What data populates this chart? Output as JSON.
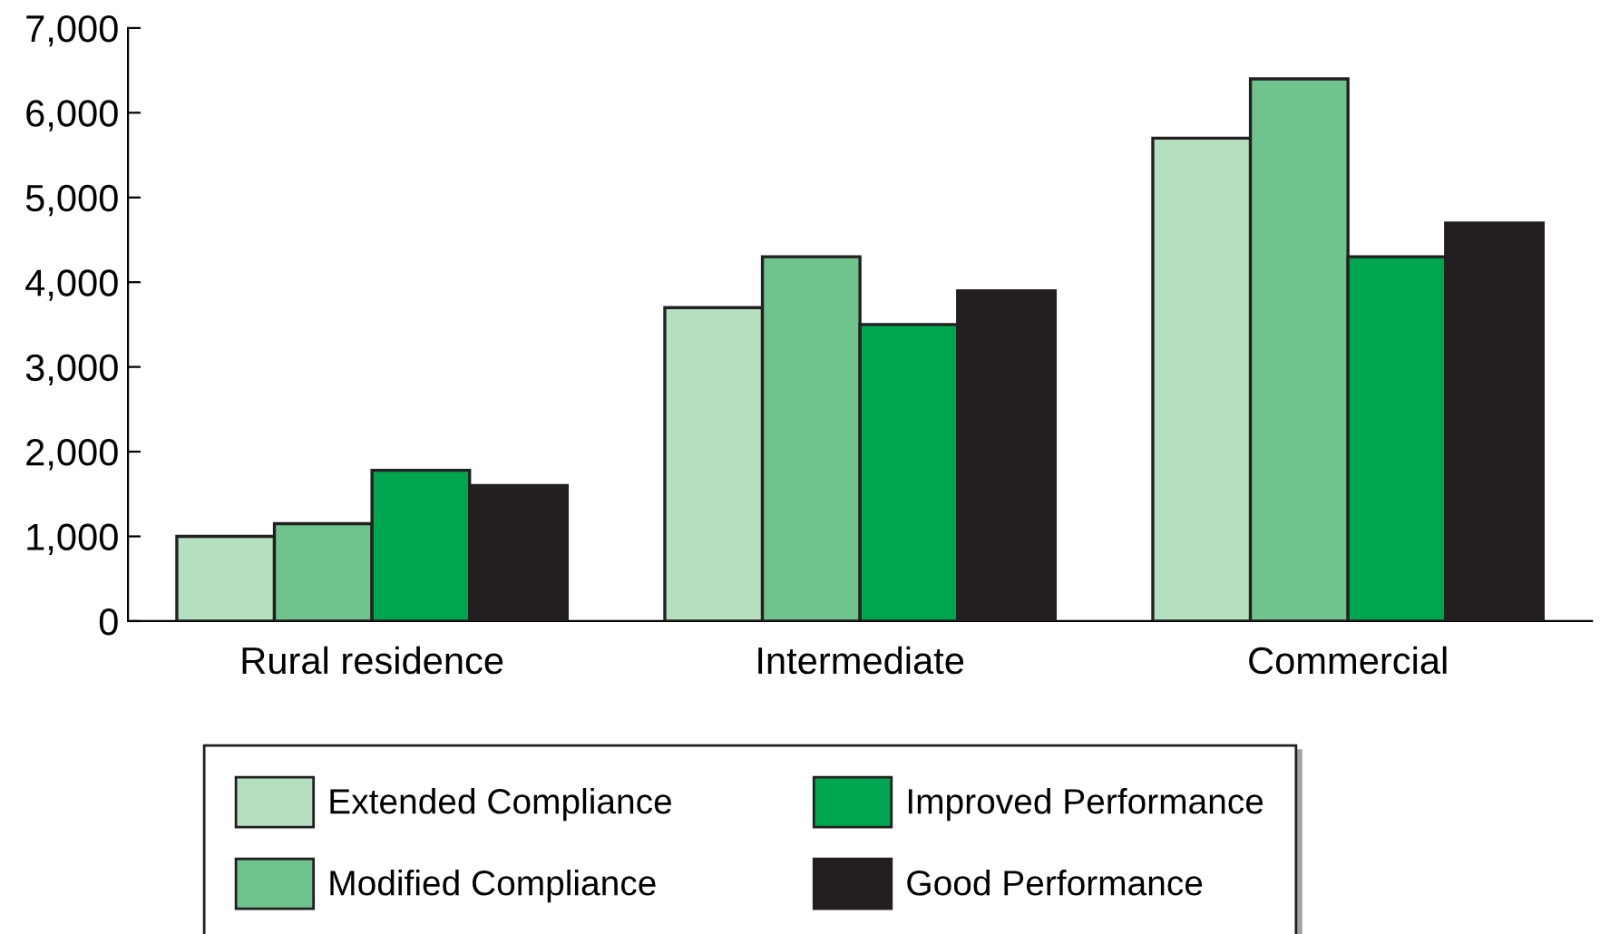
{
  "chart_data": {
    "type": "bar",
    "categories": [
      "Rural residence",
      "Intermediate",
      "Commercial"
    ],
    "series": [
      {
        "name": "Extended Compliance",
        "color": "#b5e0c0",
        "values": [
          1000,
          3700,
          5700
        ]
      },
      {
        "name": "Modified Compliance",
        "color": "#6fc48e",
        "values": [
          1150,
          4300,
          6400
        ]
      },
      {
        "name": "Improved Performance",
        "color": "#00a64f",
        "values": [
          1780,
          3500,
          4300
        ]
      },
      {
        "name": "Good Performance",
        "color": "#231f20",
        "values": [
          1600,
          3900,
          4700
        ]
      }
    ],
    "ylim": [
      0,
      7000
    ],
    "yticks": [
      0,
      {
        "value": 1000,
        "label": "1,000"
      },
      {
        "value": 2000,
        "label": "2,000"
      },
      {
        "value": 3000,
        "label": "3,000"
      },
      {
        "value": 4000,
        "label": "4,000"
      },
      {
        "value": 5000,
        "label": "5,000"
      },
      {
        "value": 6000,
        "label": "6,000"
      },
      {
        "value": 7000,
        "label": "7,000"
      }
    ],
    "grid": false,
    "legend": "bottom"
  }
}
